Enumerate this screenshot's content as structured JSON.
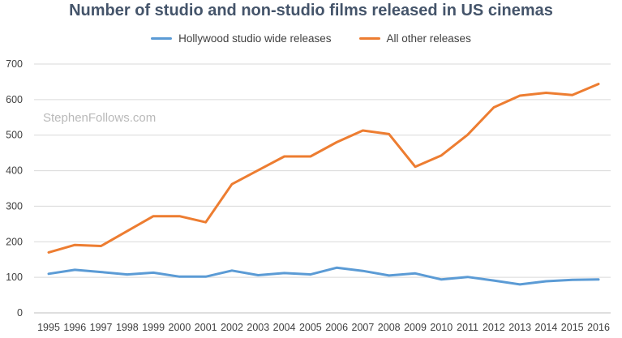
{
  "chart_data": {
    "type": "line",
    "title": "Number of studio and non-studio films released in US cinemas",
    "watermark": "StephenFollows.com",
    "categories": [
      "1995",
      "1996",
      "1997",
      "1998",
      "1999",
      "2000",
      "2001",
      "2002",
      "2003",
      "2004",
      "2005",
      "2006",
      "2007",
      "2008",
      "2009",
      "2010",
      "2011",
      "2012",
      "2013",
      "2014",
      "2015",
      "2016"
    ],
    "series": [
      {
        "name": "Hollywood studio wide releases",
        "color": "#5b9bd5",
        "values": [
          110,
          121,
          115,
          108,
          113,
          102,
          102,
          119,
          106,
          112,
          108,
          127,
          118,
          105,
          111,
          94,
          101,
          91,
          80,
          89,
          93,
          94
        ]
      },
      {
        "name": "All other releases",
        "color": "#ed7d31",
        "values": [
          170,
          191,
          188,
          230,
          272,
          272,
          255,
          362,
          401,
          440,
          440,
          480,
          513,
          503,
          411,
          443,
          501,
          578,
          611,
          619,
          613,
          644
        ]
      }
    ],
    "yticks": [
      0,
      100,
      200,
      300,
      400,
      500,
      600,
      700
    ],
    "ylim": [
      0,
      700
    ],
    "grid": true,
    "legend": "top-center"
  }
}
